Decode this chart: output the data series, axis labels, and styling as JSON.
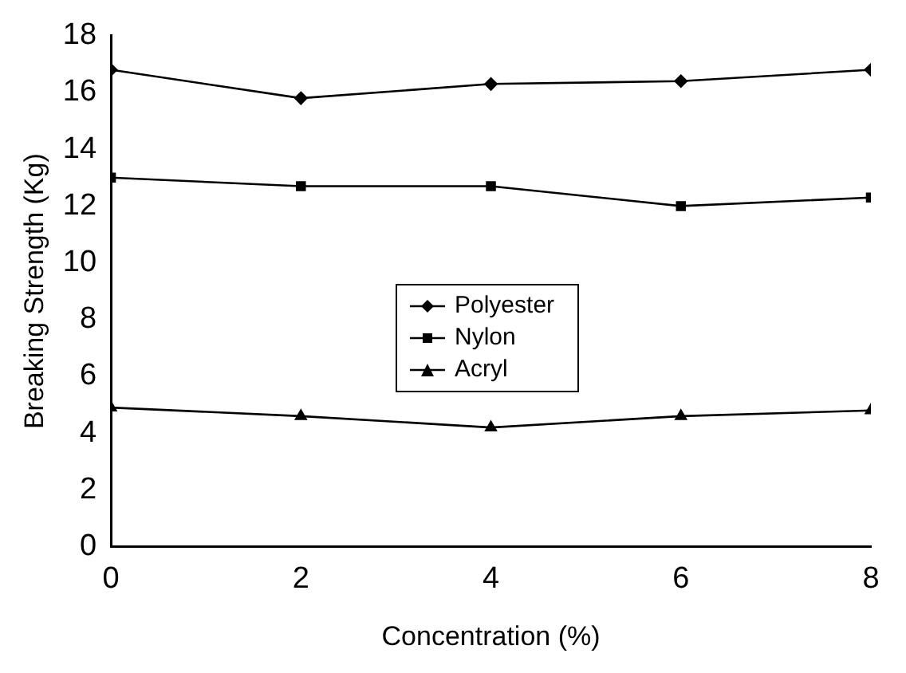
{
  "chart_data": {
    "type": "line",
    "xlabel": "Concentration (%)",
    "ylabel": "Breaking Strength (Kg)",
    "x": [
      0,
      2,
      4,
      6,
      8
    ],
    "xlim": [
      0,
      8
    ],
    "xticks": [
      0,
      2,
      4,
      6,
      8
    ],
    "ylim": [
      0,
      18
    ],
    "yticks": [
      0,
      2,
      4,
      6,
      8,
      10,
      12,
      14,
      16,
      18
    ],
    "grid": false,
    "legend": "center",
    "line_style": "solid",
    "series": [
      {
        "name": "Polyester",
        "color": "#000000",
        "marker": "diamond",
        "values": [
          16.8,
          15.8,
          16.3,
          16.4,
          16.8
        ]
      },
      {
        "name": "Nylon",
        "color": "#000000",
        "marker": "square",
        "values": [
          13.0,
          12.7,
          12.7,
          12.0,
          12.3
        ]
      },
      {
        "name": "Acryl",
        "color": "#000000",
        "marker": "triangle",
        "values": [
          4.9,
          4.6,
          4.2,
          4.6,
          4.8
        ]
      }
    ]
  }
}
